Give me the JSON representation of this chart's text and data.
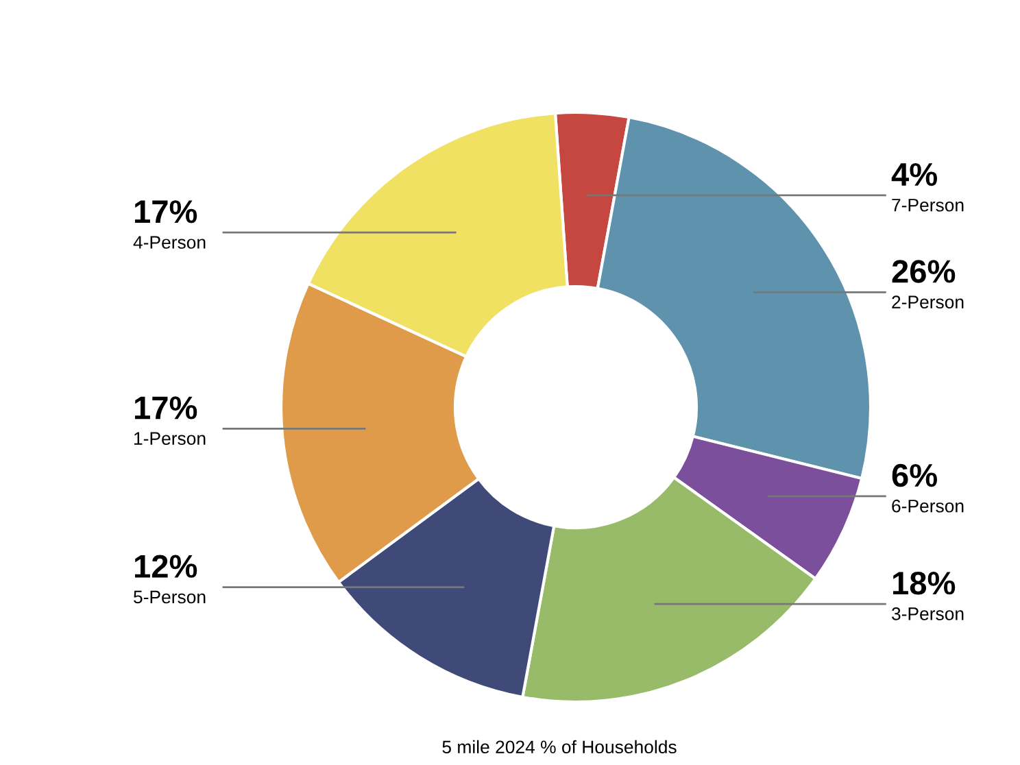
{
  "chart_data": {
    "type": "donut",
    "categories": [
      "7-Person",
      "2-Person",
      "6-Person",
      "3-Person",
      "5-Person",
      "1-Person",
      "4-Person"
    ],
    "values": [
      4,
      26,
      6,
      18,
      12,
      17,
      17
    ],
    "value_labels": [
      "4%",
      "26%",
      "6%",
      "18%",
      "12%",
      "17%",
      "17%"
    ],
    "colors": [
      "#c5473f",
      "#5f93ad",
      "#7c4f9c",
      "#98bb6a",
      "#3f4a78",
      "#e09b4a",
      "#f1e162"
    ],
    "annotations": [
      "5 mile 2024 % of Households"
    ],
    "legend": false
  }
}
